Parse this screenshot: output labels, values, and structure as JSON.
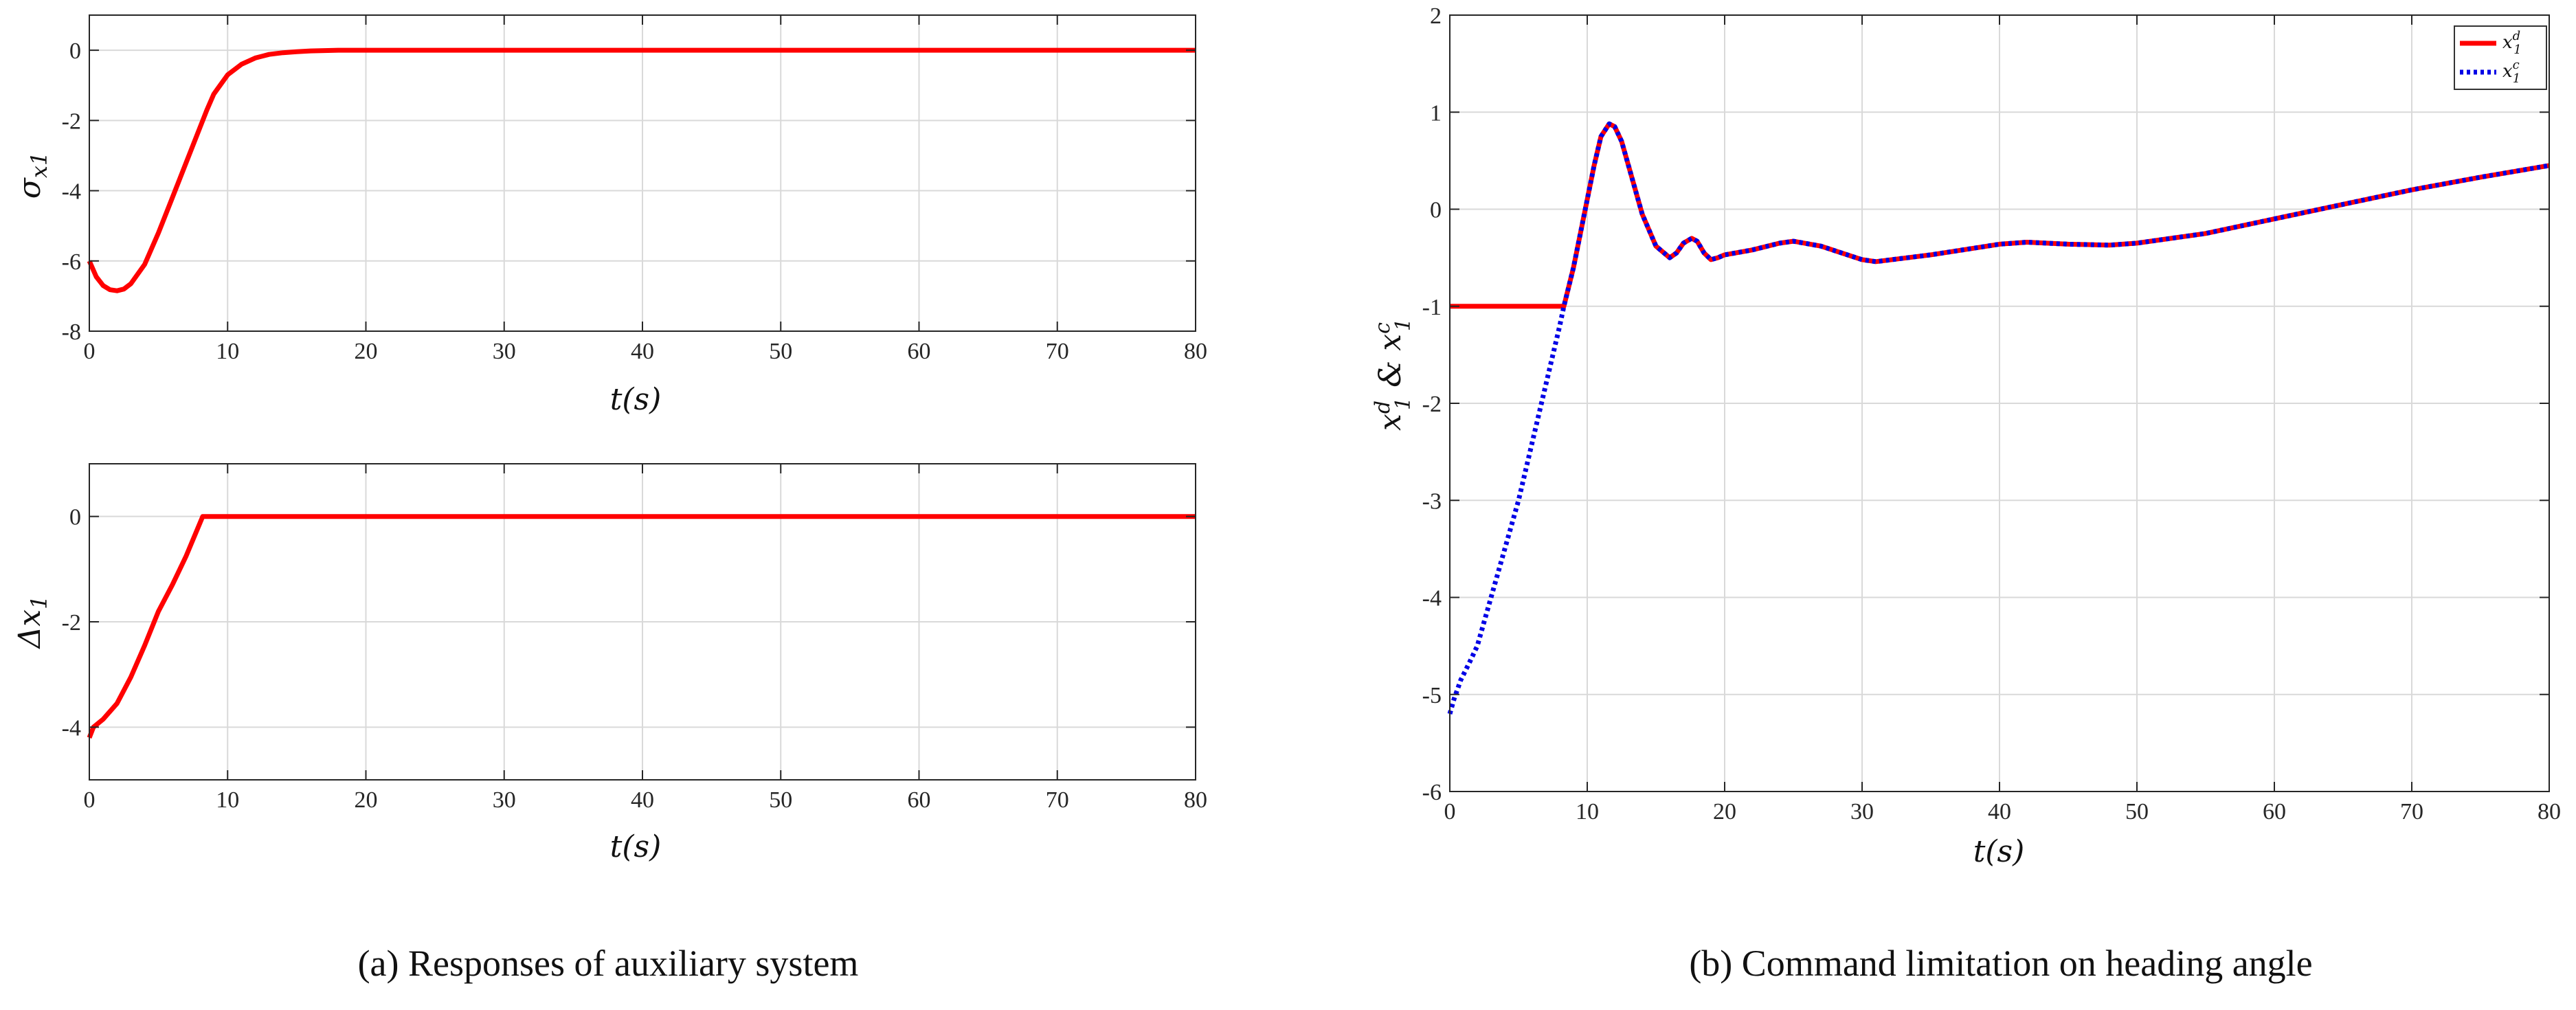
{
  "captions": {
    "a": "(a)  Responses of auxiliary system",
    "b": "(b)  Command limitation on heading angle"
  },
  "colors": {
    "red": "#ff0000",
    "blue": "#0000e6"
  },
  "chart_data": [
    {
      "id": "sigma",
      "type": "line",
      "xlabel": "t(s)",
      "ylabel": "σx1",
      "xlim": [
        0,
        80
      ],
      "ylim": [
        -8,
        1
      ],
      "xticks": [
        0,
        10,
        20,
        30,
        40,
        50,
        60,
        70,
        80
      ],
      "yticks": [
        -8,
        -6,
        -4,
        -2,
        0
      ],
      "grid": true,
      "series": [
        {
          "color": "#ff0000",
          "style": "solid",
          "x": [
            0,
            0.5,
            1,
            1.5,
            2,
            2.5,
            3,
            4,
            5,
            6,
            7,
            8,
            8.5,
            9,
            10,
            11,
            12,
            13,
            14,
            15,
            16,
            17,
            18,
            20,
            25,
            30,
            40,
            50,
            60,
            70,
            80
          ],
          "y": [
            -6.0,
            -6.45,
            -6.7,
            -6.82,
            -6.85,
            -6.8,
            -6.65,
            -6.1,
            -5.2,
            -4.2,
            -3.2,
            -2.2,
            -1.7,
            -1.25,
            -0.7,
            -0.4,
            -0.22,
            -0.12,
            -0.07,
            -0.04,
            -0.02,
            -0.01,
            0,
            0,
            0,
            0,
            0,
            0,
            0,
            0,
            0
          ]
        }
      ]
    },
    {
      "id": "delta",
      "type": "line",
      "xlabel": "t(s)",
      "ylabel": "Δx1",
      "xlim": [
        0,
        80
      ],
      "ylim": [
        -5,
        1
      ],
      "xticks": [
        0,
        10,
        20,
        30,
        40,
        50,
        60,
        70,
        80
      ],
      "yticks": [
        -4,
        -2,
        0
      ],
      "grid": true,
      "series": [
        {
          "color": "#ff0000",
          "style": "solid",
          "x": [
            0,
            0.3,
            1,
            2,
            3,
            4,
            5,
            6,
            7,
            8.2,
            10,
            20,
            30,
            40,
            50,
            60,
            70,
            80
          ],
          "y": [
            -4.2,
            -4.0,
            -3.85,
            -3.55,
            -3.05,
            -2.45,
            -1.8,
            -1.3,
            -0.75,
            0,
            0,
            0,
            0,
            0,
            0,
            0,
            0,
            0
          ]
        }
      ]
    },
    {
      "id": "heading",
      "type": "line",
      "xlabel": "t(s)",
      "ylabel": "x1d & x1c",
      "xlim": [
        0,
        80
      ],
      "ylim": [
        -6,
        2
      ],
      "xticks": [
        0,
        10,
        20,
        30,
        40,
        50,
        60,
        70,
        80
      ],
      "yticks": [
        -6,
        -5,
        -4,
        -3,
        -2,
        -1,
        0,
        1,
        2
      ],
      "grid": true,
      "legend": "top-right",
      "series": [
        {
          "name": "x1d",
          "color": "#ff0000",
          "style": "solid",
          "x": [
            0,
            8.3,
            9,
            10,
            10.5,
            11,
            11.6,
            12,
            12.5,
            13,
            14,
            15,
            16,
            16.5,
            17,
            17.6,
            18,
            18.5,
            19,
            19.5,
            20,
            22,
            24,
            25,
            27,
            30,
            31,
            35,
            40,
            42,
            45,
            48,
            50,
            55,
            60,
            65,
            70,
            75,
            80
          ],
          "y": [
            -1.0,
            -1.0,
            -0.6,
            0.1,
            0.45,
            0.75,
            0.88,
            0.85,
            0.7,
            0.45,
            -0.05,
            -0.38,
            -0.5,
            -0.45,
            -0.35,
            -0.3,
            -0.33,
            -0.45,
            -0.52,
            -0.5,
            -0.47,
            -0.42,
            -0.35,
            -0.33,
            -0.38,
            -0.52,
            -0.54,
            -0.47,
            -0.36,
            -0.34,
            -0.36,
            -0.37,
            -0.35,
            -0.25,
            -0.1,
            0.05,
            0.2,
            0.33,
            0.45
          ]
        },
        {
          "name": "x1c",
          "color": "#0000e6",
          "style": "dotted",
          "x": [
            0,
            0.3,
            0.8,
            1.5,
            2,
            3,
            4,
            5,
            6,
            7,
            7.5,
            8,
            8.3,
            9,
            10,
            10.5,
            11,
            11.6,
            12,
            12.5,
            13,
            14,
            15,
            16,
            16.5,
            17,
            17.6,
            18,
            18.5,
            19,
            19.5,
            20,
            22,
            24,
            25,
            27,
            30,
            31,
            35,
            40,
            42,
            45,
            48,
            50,
            55,
            60,
            65,
            70,
            75,
            80
          ],
          "y": [
            -5.2,
            -5.05,
            -4.85,
            -4.65,
            -4.5,
            -4.0,
            -3.5,
            -3.0,
            -2.4,
            -1.8,
            -1.5,
            -1.2,
            -1.0,
            -0.6,
            0.1,
            0.45,
            0.75,
            0.88,
            0.85,
            0.7,
            0.45,
            -0.05,
            -0.38,
            -0.5,
            -0.45,
            -0.35,
            -0.3,
            -0.33,
            -0.45,
            -0.52,
            -0.5,
            -0.47,
            -0.42,
            -0.35,
            -0.33,
            -0.38,
            -0.52,
            -0.54,
            -0.47,
            -0.36,
            -0.34,
            -0.36,
            -0.37,
            -0.35,
            -0.25,
            -0.1,
            0.05,
            0.2,
            0.33,
            0.45
          ]
        }
      ]
    }
  ]
}
